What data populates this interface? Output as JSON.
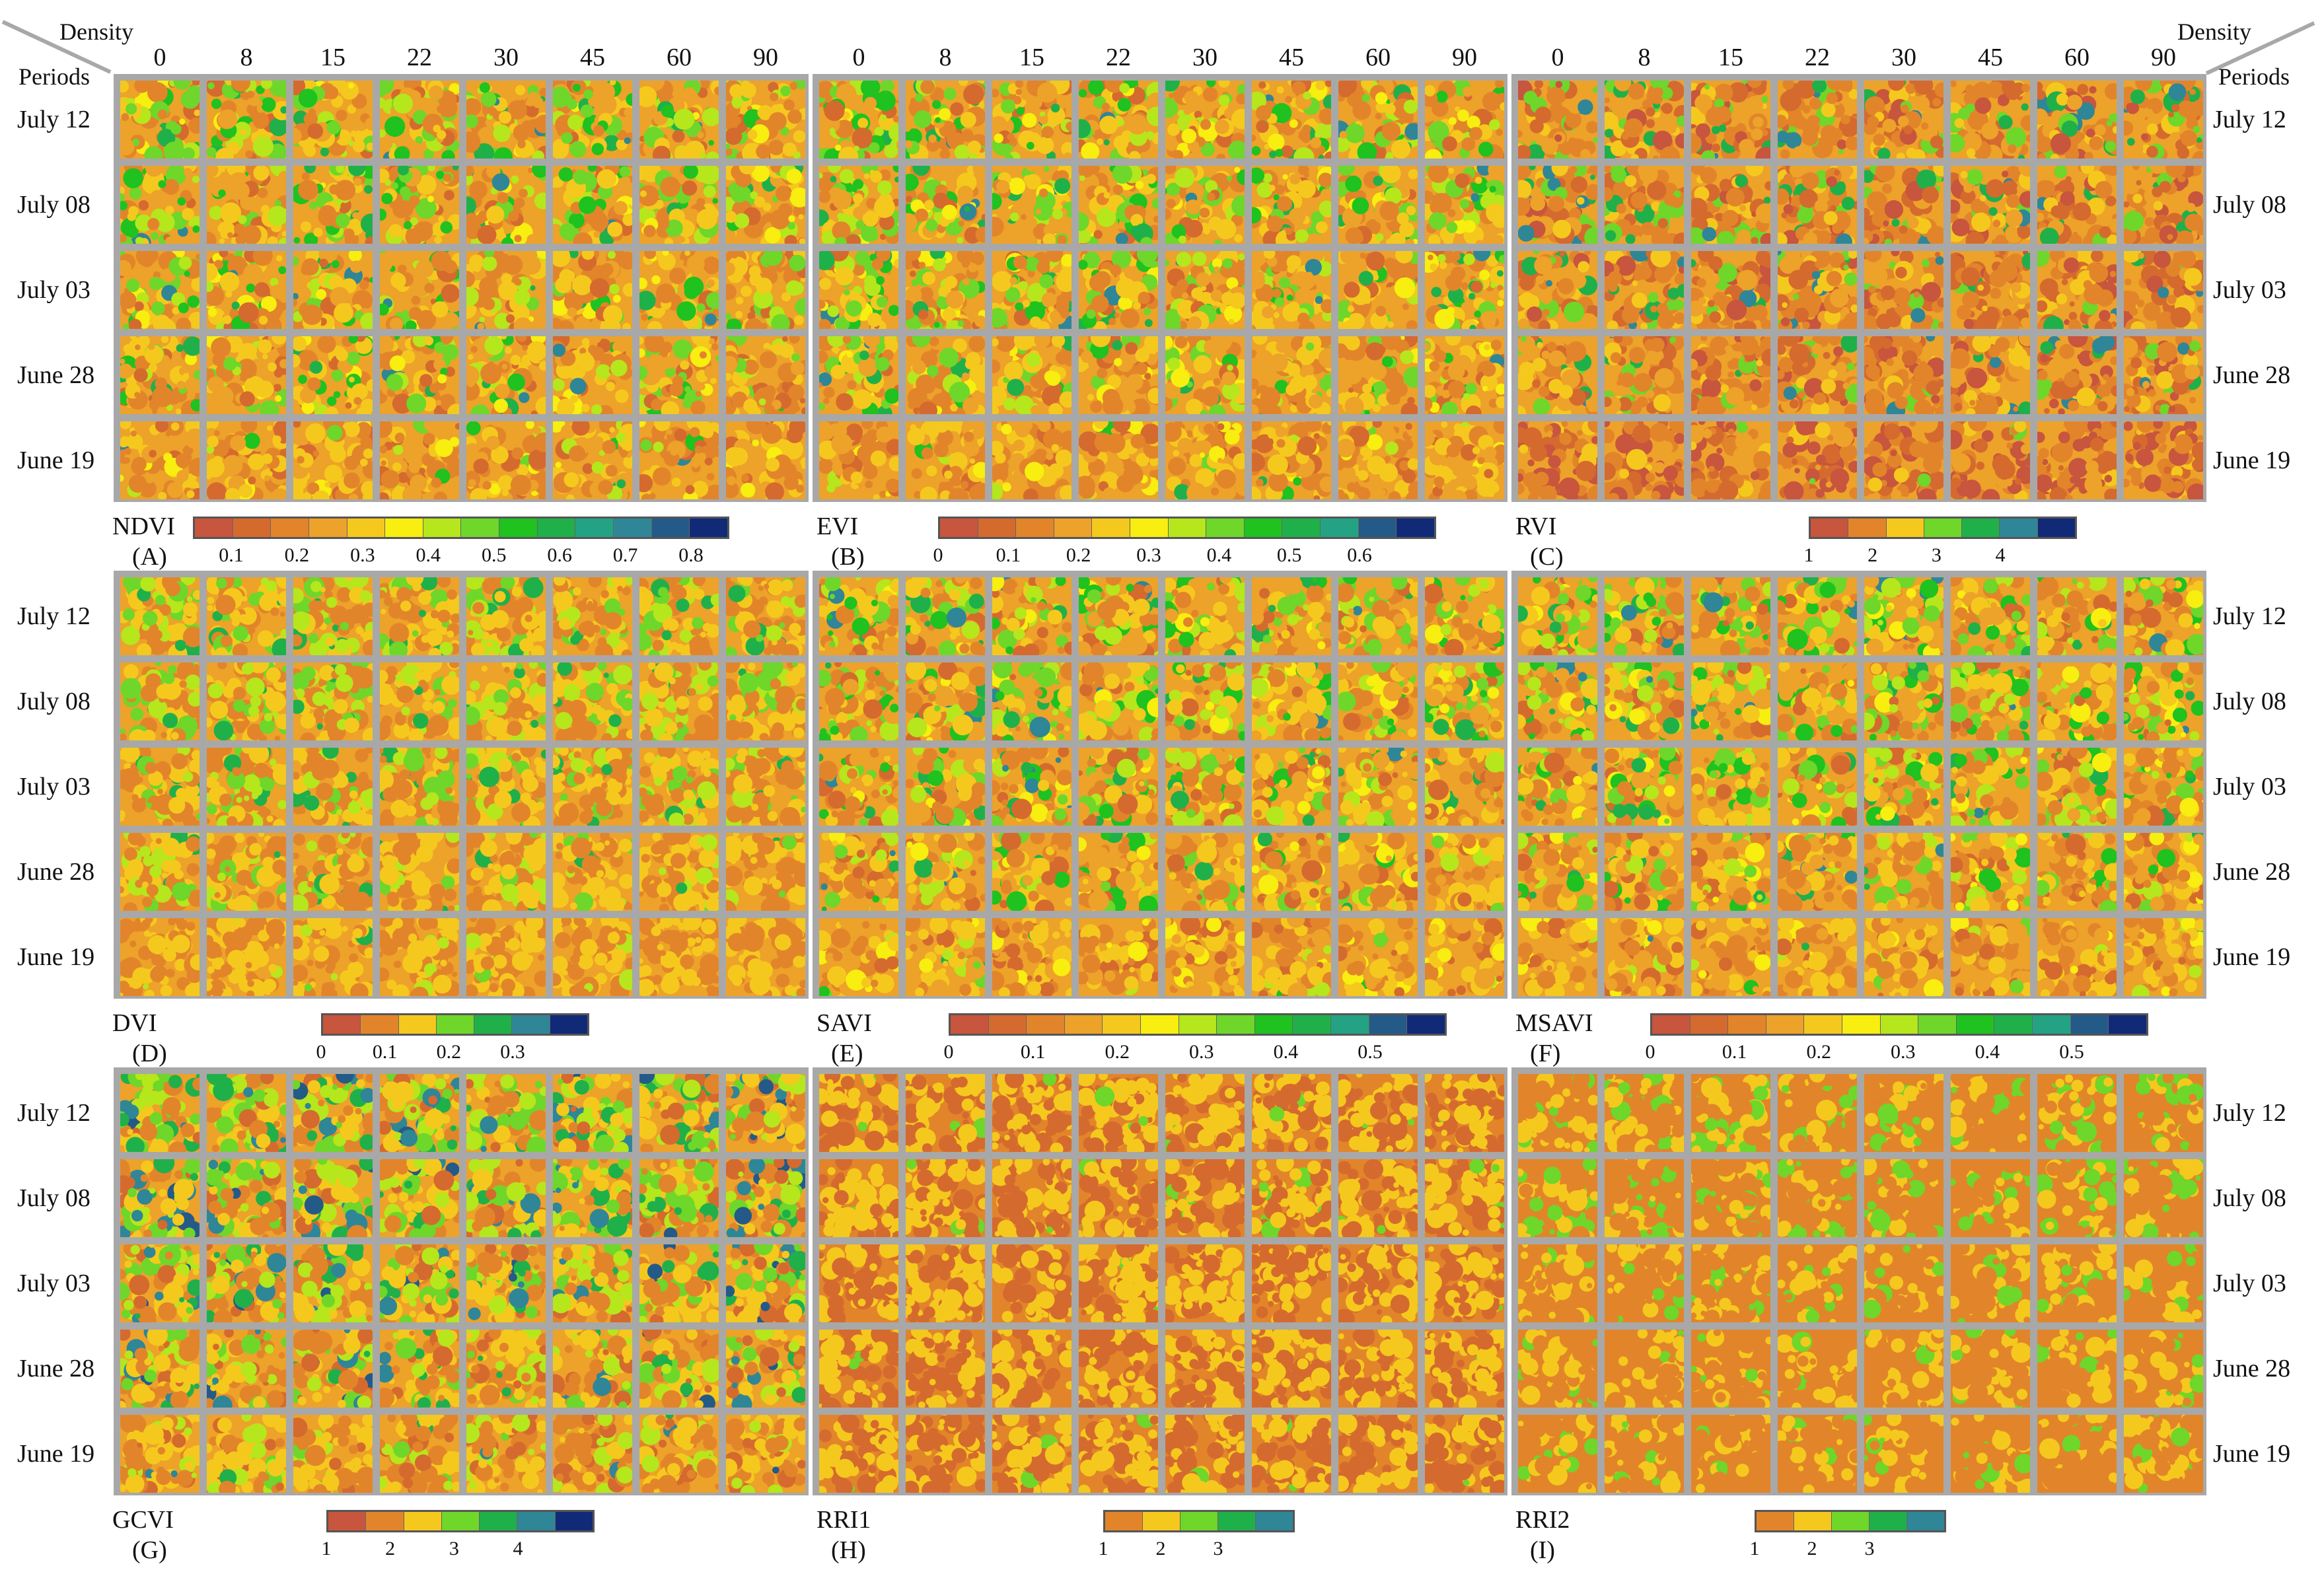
{
  "figure": {
    "corner_left": {
      "density": "Density",
      "periods": "Periods"
    },
    "corner_right": {
      "density": "Density",
      "periods": "Periods"
    },
    "densities": [
      "0",
      "8",
      "15",
      "22",
      "30",
      "45",
      "60",
      "90"
    ],
    "periods": [
      "July 12",
      "July 08",
      "July 03",
      "June 28",
      "June 19"
    ]
  },
  "colors": {
    "palette13": [
      "#c8553d",
      "#d56a2e",
      "#e2852a",
      "#eda22a",
      "#f5c81e",
      "#f8ee10",
      "#b6e61c",
      "#6fd62a",
      "#1fc21f",
      "#20b04a",
      "#23a383",
      "#2f8696",
      "#245a88",
      "#102a78"
    ],
    "frame": "#a8a8a8"
  },
  "panels": [
    {
      "name": "NDVI",
      "letter": "(A)",
      "scale": "ndvi",
      "ticks": [
        "0.1",
        "0.2",
        "0.3",
        "0.4",
        "0.5",
        "0.6",
        "0.7",
        "0.8"
      ],
      "bar": [
        "#c8553d",
        "#d56a2e",
        "#e2852a",
        "#eda22a",
        "#f5c81e",
        "#f8ee10",
        "#b6e61c",
        "#6fd62a",
        "#1fc21f",
        "#20b04a",
        "#23a383",
        "#2f8696",
        "#245a88",
        "#102a78"
      ]
    },
    {
      "name": "EVI",
      "letter": "(B)",
      "scale": "evi",
      "ticks": [
        "0",
        "0.1",
        "0.2",
        "0.3",
        "0.4",
        "0.5",
        "0.6"
      ],
      "bar": [
        "#c8553d",
        "#d56a2e",
        "#e2852a",
        "#eda22a",
        "#f5c81e",
        "#f8ee10",
        "#b6e61c",
        "#6fd62a",
        "#1fc21f",
        "#20b04a",
        "#23a383",
        "#245a88",
        "#102a78"
      ]
    },
    {
      "name": "RVI",
      "letter": "(C)",
      "scale": "rvi",
      "ticks": [
        "1",
        "2",
        "3",
        "4"
      ],
      "bar": [
        "#c8553d",
        "#e2852a",
        "#f5c81e",
        "#6fd62a",
        "#20b04a",
        "#2f8696",
        "#102a78"
      ]
    },
    {
      "name": "DVI",
      "letter": "(D)",
      "scale": "dvi",
      "ticks": [
        "0",
        "0.1",
        "0.2",
        "0.3"
      ],
      "bar": [
        "#c8553d",
        "#e2852a",
        "#f5c81e",
        "#6fd62a",
        "#20b04a",
        "#2f8696",
        "#102a78"
      ]
    },
    {
      "name": "SAVI",
      "letter": "(E)",
      "scale": "savi",
      "ticks": [
        "0",
        "0.1",
        "0.2",
        "0.3",
        "0.4",
        "0.5"
      ],
      "bar": [
        "#c8553d",
        "#d56a2e",
        "#e2852a",
        "#eda22a",
        "#f5c81e",
        "#f8ee10",
        "#b6e61c",
        "#6fd62a",
        "#1fc21f",
        "#20b04a",
        "#23a383",
        "#245a88",
        "#102a78"
      ]
    },
    {
      "name": "MSAVI",
      "letter": "(F)",
      "scale": "msavi",
      "ticks": [
        "0",
        "0.1",
        "0.2",
        "0.3",
        "0.4",
        "0.5"
      ],
      "bar": [
        "#c8553d",
        "#d56a2e",
        "#e2852a",
        "#eda22a",
        "#f5c81e",
        "#f8ee10",
        "#b6e61c",
        "#6fd62a",
        "#1fc21f",
        "#20b04a",
        "#23a383",
        "#245a88",
        "#102a78"
      ]
    },
    {
      "name": "GCVI",
      "letter": "(G)",
      "scale": "gcvi",
      "ticks": [
        "1",
        "2",
        "3",
        "4"
      ],
      "bar": [
        "#c8553d",
        "#e2852a",
        "#f5c81e",
        "#6fd62a",
        "#20b04a",
        "#2f8696",
        "#102a78"
      ]
    },
    {
      "name": "RRI1",
      "letter": "(H)",
      "scale": "rri1",
      "ticks": [
        "1",
        "2",
        "3"
      ],
      "bar": [
        "#e2852a",
        "#f5c81e",
        "#6fd62a",
        "#20b04a",
        "#2f8696"
      ]
    },
    {
      "name": "RRI2",
      "letter": "(I)",
      "scale": "rri2",
      "ticks": [
        "1",
        "2",
        "3"
      ],
      "bar": [
        "#e2852a",
        "#f5c81e",
        "#6fd62a",
        "#20b04a",
        "#2f8696"
      ]
    }
  ]
}
